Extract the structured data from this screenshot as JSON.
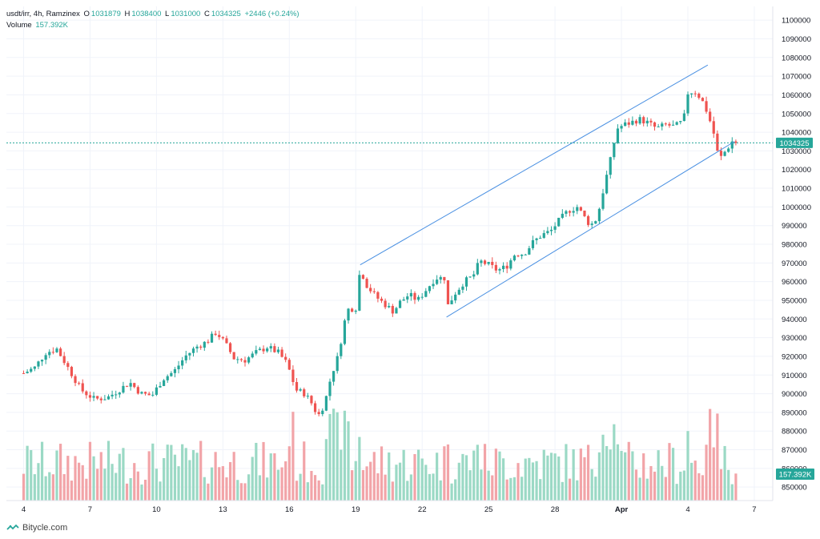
{
  "header": {
    "symbol": "usdt/irr, 4h, Ramzinex",
    "o_label": "O",
    "o_value": "1031879",
    "h_label": "H",
    "h_value": "1038400",
    "l_label": "L",
    "l_value": "1031000",
    "c_label": "C",
    "c_value": "1034325",
    "change": "+2446 (+0.24%)",
    "volume_label": "Volume",
    "volume_value": "157.392K"
  },
  "footer": {
    "brand": "Bitycle.com"
  },
  "chart_data": {
    "type": "candlestick",
    "y_ticks": [
      850000,
      860000,
      870000,
      880000,
      890000,
      900000,
      910000,
      920000,
      930000,
      940000,
      950000,
      960000,
      970000,
      980000,
      990000,
      1000000,
      1010000,
      1020000,
      1030000,
      1040000,
      1050000,
      1060000,
      1070000,
      1080000,
      1090000,
      1100000
    ],
    "ylim": [
      846000,
      1102000
    ],
    "x_ticks": [
      "4",
      "7",
      "10",
      "13",
      "16",
      "19",
      "22",
      "25",
      "28",
      "Apr",
      "4",
      "7"
    ],
    "last_price": 1034325,
    "last_price_label": "1034325",
    "last_volume_label": "157.392K",
    "colors": {
      "up": "#26a69a",
      "down": "#ef5350",
      "vol_up": "#9bd9c5",
      "vol_down": "#f2a4a8",
      "channel": "#4a90e2",
      "grid": "#f0f3fa"
    },
    "price_path": [
      {
        "day": 0.0,
        "price": 911000
      },
      {
        "day": 0.5,
        "price": 914000
      },
      {
        "day": 1.0,
        "price": 922000
      },
      {
        "day": 1.5,
        "price": 924000
      },
      {
        "day": 2.0,
        "price": 914000
      },
      {
        "day": 2.6,
        "price": 902000
      },
      {
        "day": 3.2,
        "price": 897000
      },
      {
        "day": 3.8,
        "price": 898000
      },
      {
        "day": 4.3,
        "price": 902000
      },
      {
        "day": 4.8,
        "price": 906000
      },
      {
        "day": 5.3,
        "price": 900000
      },
      {
        "day": 5.8,
        "price": 899000
      },
      {
        "day": 6.3,
        "price": 908000
      },
      {
        "day": 6.8,
        "price": 912000
      },
      {
        "day": 7.3,
        "price": 920000
      },
      {
        "day": 7.8,
        "price": 925000
      },
      {
        "day": 8.3,
        "price": 928000
      },
      {
        "day": 8.7,
        "price": 933000
      },
      {
        "day": 9.1,
        "price": 927000
      },
      {
        "day": 9.5,
        "price": 919000
      },
      {
        "day": 10.0,
        "price": 918000
      },
      {
        "day": 10.5,
        "price": 922000
      },
      {
        "day": 11.0,
        "price": 925000
      },
      {
        "day": 11.5,
        "price": 922000
      },
      {
        "day": 11.9,
        "price": 916000
      },
      {
        "day": 12.3,
        "price": 902000
      },
      {
        "day": 12.7,
        "price": 900000
      },
      {
        "day": 13.0,
        "price": 895000
      },
      {
        "day": 13.3,
        "price": 888000
      },
      {
        "day": 13.6,
        "price": 895000
      },
      {
        "day": 13.9,
        "price": 910000
      },
      {
        "day": 14.2,
        "price": 920000
      },
      {
        "day": 14.6,
        "price": 945000
      },
      {
        "day": 15.0,
        "price": 946000
      },
      {
        "day": 15.2,
        "price": 967000
      },
      {
        "day": 15.5,
        "price": 958000
      },
      {
        "day": 15.9,
        "price": 952000
      },
      {
        "day": 16.3,
        "price": 948000
      },
      {
        "day": 16.7,
        "price": 944000
      },
      {
        "day": 17.0,
        "price": 949000
      },
      {
        "day": 17.4,
        "price": 953000
      },
      {
        "day": 17.8,
        "price": 950000
      },
      {
        "day": 18.2,
        "price": 956000
      },
      {
        "day": 18.6,
        "price": 962000
      },
      {
        "day": 19.0,
        "price": 962000
      },
      {
        "day": 19.15,
        "price": 947000
      },
      {
        "day": 19.5,
        "price": 954000
      },
      {
        "day": 19.9,
        "price": 960000
      },
      {
        "day": 20.3,
        "price": 963000
      },
      {
        "day": 20.6,
        "price": 971000
      },
      {
        "day": 21.0,
        "price": 969000
      },
      {
        "day": 21.4,
        "price": 966000
      },
      {
        "day": 21.8,
        "price": 968000
      },
      {
        "day": 22.2,
        "price": 975000
      },
      {
        "day": 22.6,
        "price": 975000
      },
      {
        "day": 23.0,
        "price": 981000
      },
      {
        "day": 23.4,
        "price": 985000
      },
      {
        "day": 23.8,
        "price": 987000
      },
      {
        "day": 24.2,
        "price": 993000
      },
      {
        "day": 24.6,
        "price": 998000
      },
      {
        "day": 25.0,
        "price": 1000000
      },
      {
        "day": 25.3,
        "price": 995000
      },
      {
        "day": 25.6,
        "price": 990000
      },
      {
        "day": 25.9,
        "price": 994000
      },
      {
        "day": 26.2,
        "price": 1010000
      },
      {
        "day": 26.5,
        "price": 1025000
      },
      {
        "day": 26.8,
        "price": 1042000
      },
      {
        "day": 27.1,
        "price": 1044000
      },
      {
        "day": 27.4,
        "price": 1045000
      },
      {
        "day": 27.8,
        "price": 1047000
      },
      {
        "day": 28.2,
        "price": 1045000
      },
      {
        "day": 28.6,
        "price": 1042000
      },
      {
        "day": 29.0,
        "price": 1044000
      },
      {
        "day": 29.4,
        "price": 1043000
      },
      {
        "day": 29.8,
        "price": 1046000
      },
      {
        "day": 30.0,
        "price": 1061000
      },
      {
        "day": 30.3,
        "price": 1062000
      },
      {
        "day": 30.6,
        "price": 1058000
      },
      {
        "day": 30.9,
        "price": 1050000
      },
      {
        "day": 31.2,
        "price": 1038000
      },
      {
        "day": 31.4,
        "price": 1025000
      },
      {
        "day": 31.7,
        "price": 1030000
      },
      {
        "day": 32.0,
        "price": 1035000
      },
      {
        "day": 32.2,
        "price": 1034325
      }
    ],
    "channel": [
      {
        "from": {
          "day": 15.2,
          "price": 969000
        },
        "to": {
          "day": 30.9,
          "price": 1076000
        }
      },
      {
        "from": {
          "day": 19.1,
          "price": 941000
        },
        "to": {
          "day": 32.1,
          "price": 1035000
        }
      }
    ]
  }
}
